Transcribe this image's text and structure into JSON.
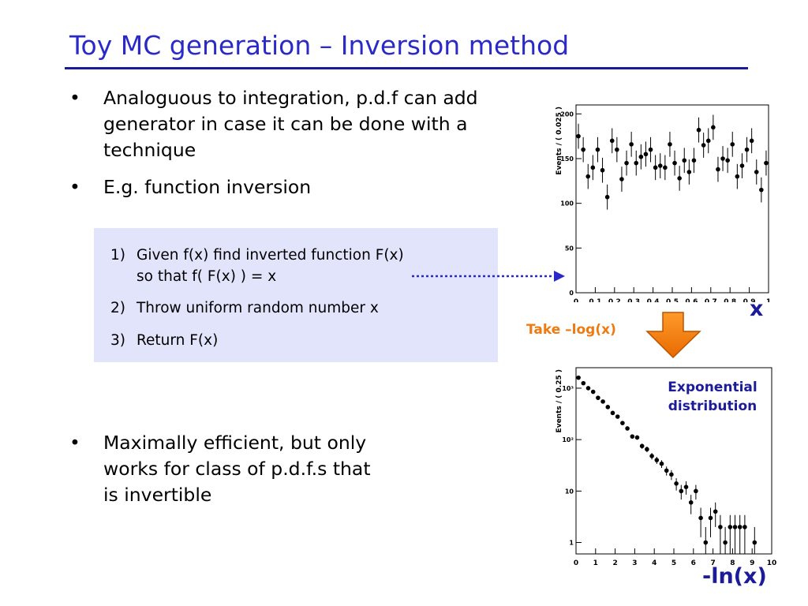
{
  "slide": {
    "title": "Toy MC generation – Inversion method",
    "bullets": [
      {
        "mark": "•",
        "text": "Analoguous to integration, p.d.f can add generator in case it can be done with a technique"
      },
      {
        "mark": "•",
        "text": "E.g. function inversion"
      }
    ],
    "steps": [
      {
        "num": "1)",
        "line1": "Given f(x) find inverted function F(x)",
        "line2": "so that f( F(x) ) = x"
      },
      {
        "num": "2)",
        "line1": "Throw uniform random number x"
      },
      {
        "num": "3)",
        "line1": "Return F(x)"
      }
    ],
    "bottom_bullet": {
      "mark": "•",
      "line1": "Maximally efficient, but only",
      "line2": "works for class of p.d.f.s that",
      "line3": "is invertible"
    },
    "take_label": "Take –log(x)",
    "expo_line1": "Exponential",
    "expo_line2": "distribution",
    "x_label_top": "x",
    "x_label_bottom": "-ln(x)"
  },
  "chart_data": [
    {
      "type": "scatter",
      "ylabel": "Events / ( 0.025 )",
      "xlim": [
        0,
        1
      ],
      "ylim": [
        0,
        210
      ],
      "x_ticks": [
        "0",
        "0.1",
        "0.2",
        "0.3",
        "0.4",
        "0.5",
        "0.6",
        "0.7",
        "0.8",
        "0.9",
        "1"
      ],
      "y_ticks": [
        "0",
        "50",
        "100",
        "150",
        "200"
      ],
      "x": [
        0.0125,
        0.0375,
        0.0625,
        0.0875,
        0.1125,
        0.1375,
        0.1625,
        0.1875,
        0.2125,
        0.2375,
        0.2625,
        0.2875,
        0.3125,
        0.3375,
        0.3625,
        0.3875,
        0.4125,
        0.4375,
        0.4625,
        0.4875,
        0.5125,
        0.5375,
        0.5625,
        0.5875,
        0.6125,
        0.6375,
        0.6625,
        0.6875,
        0.7125,
        0.7375,
        0.7625,
        0.7875,
        0.8125,
        0.8375,
        0.8625,
        0.8875,
        0.9125,
        0.9375,
        0.9625,
        0.9875
      ],
      "values": [
        175,
        160,
        130,
        140,
        160,
        137,
        107,
        170,
        160,
        127,
        145,
        166,
        145,
        152,
        155,
        160,
        140,
        142,
        140,
        166,
        145,
        128,
        148,
        135,
        148,
        182,
        165,
        170,
        185,
        138,
        150,
        148,
        166,
        130,
        142,
        160,
        170,
        135,
        115,
        145
      ],
      "error": 14
    },
    {
      "type": "scatter",
      "ylabel": "Events / ( 0.25 )",
      "log_y": true,
      "xlim": [
        0,
        10
      ],
      "ylim": [
        0.6,
        2500
      ],
      "x_ticks": [
        "0",
        "1",
        "2",
        "3",
        "4",
        "5",
        "6",
        "7",
        "8",
        "9",
        "10"
      ],
      "y_ticks": [
        "1",
        "10",
        "10²",
        "10³"
      ],
      "x": [
        0.125,
        0.375,
        0.625,
        0.875,
        1.125,
        1.375,
        1.625,
        1.875,
        2.125,
        2.375,
        2.625,
        2.875,
        3.125,
        3.375,
        3.625,
        3.875,
        4.125,
        4.375,
        4.625,
        4.875,
        5.125,
        5.375,
        5.625,
        5.875,
        6.125,
        6.375,
        6.625,
        6.875,
        7.125,
        7.375,
        7.625,
        7.875,
        8.125,
        8.375,
        8.625,
        8.875,
        9.125,
        9.375,
        9.625,
        9.875
      ],
      "values": [
        1600,
        1250,
        1000,
        850,
        650,
        550,
        430,
        330,
        280,
        210,
        165,
        115,
        110,
        75,
        65,
        48,
        40,
        34,
        25,
        21,
        14,
        10,
        12,
        6,
        10,
        3,
        1,
        3,
        4,
        2,
        1,
        2,
        2,
        2,
        2,
        0,
        1,
        0,
        0,
        0
      ]
    }
  ]
}
